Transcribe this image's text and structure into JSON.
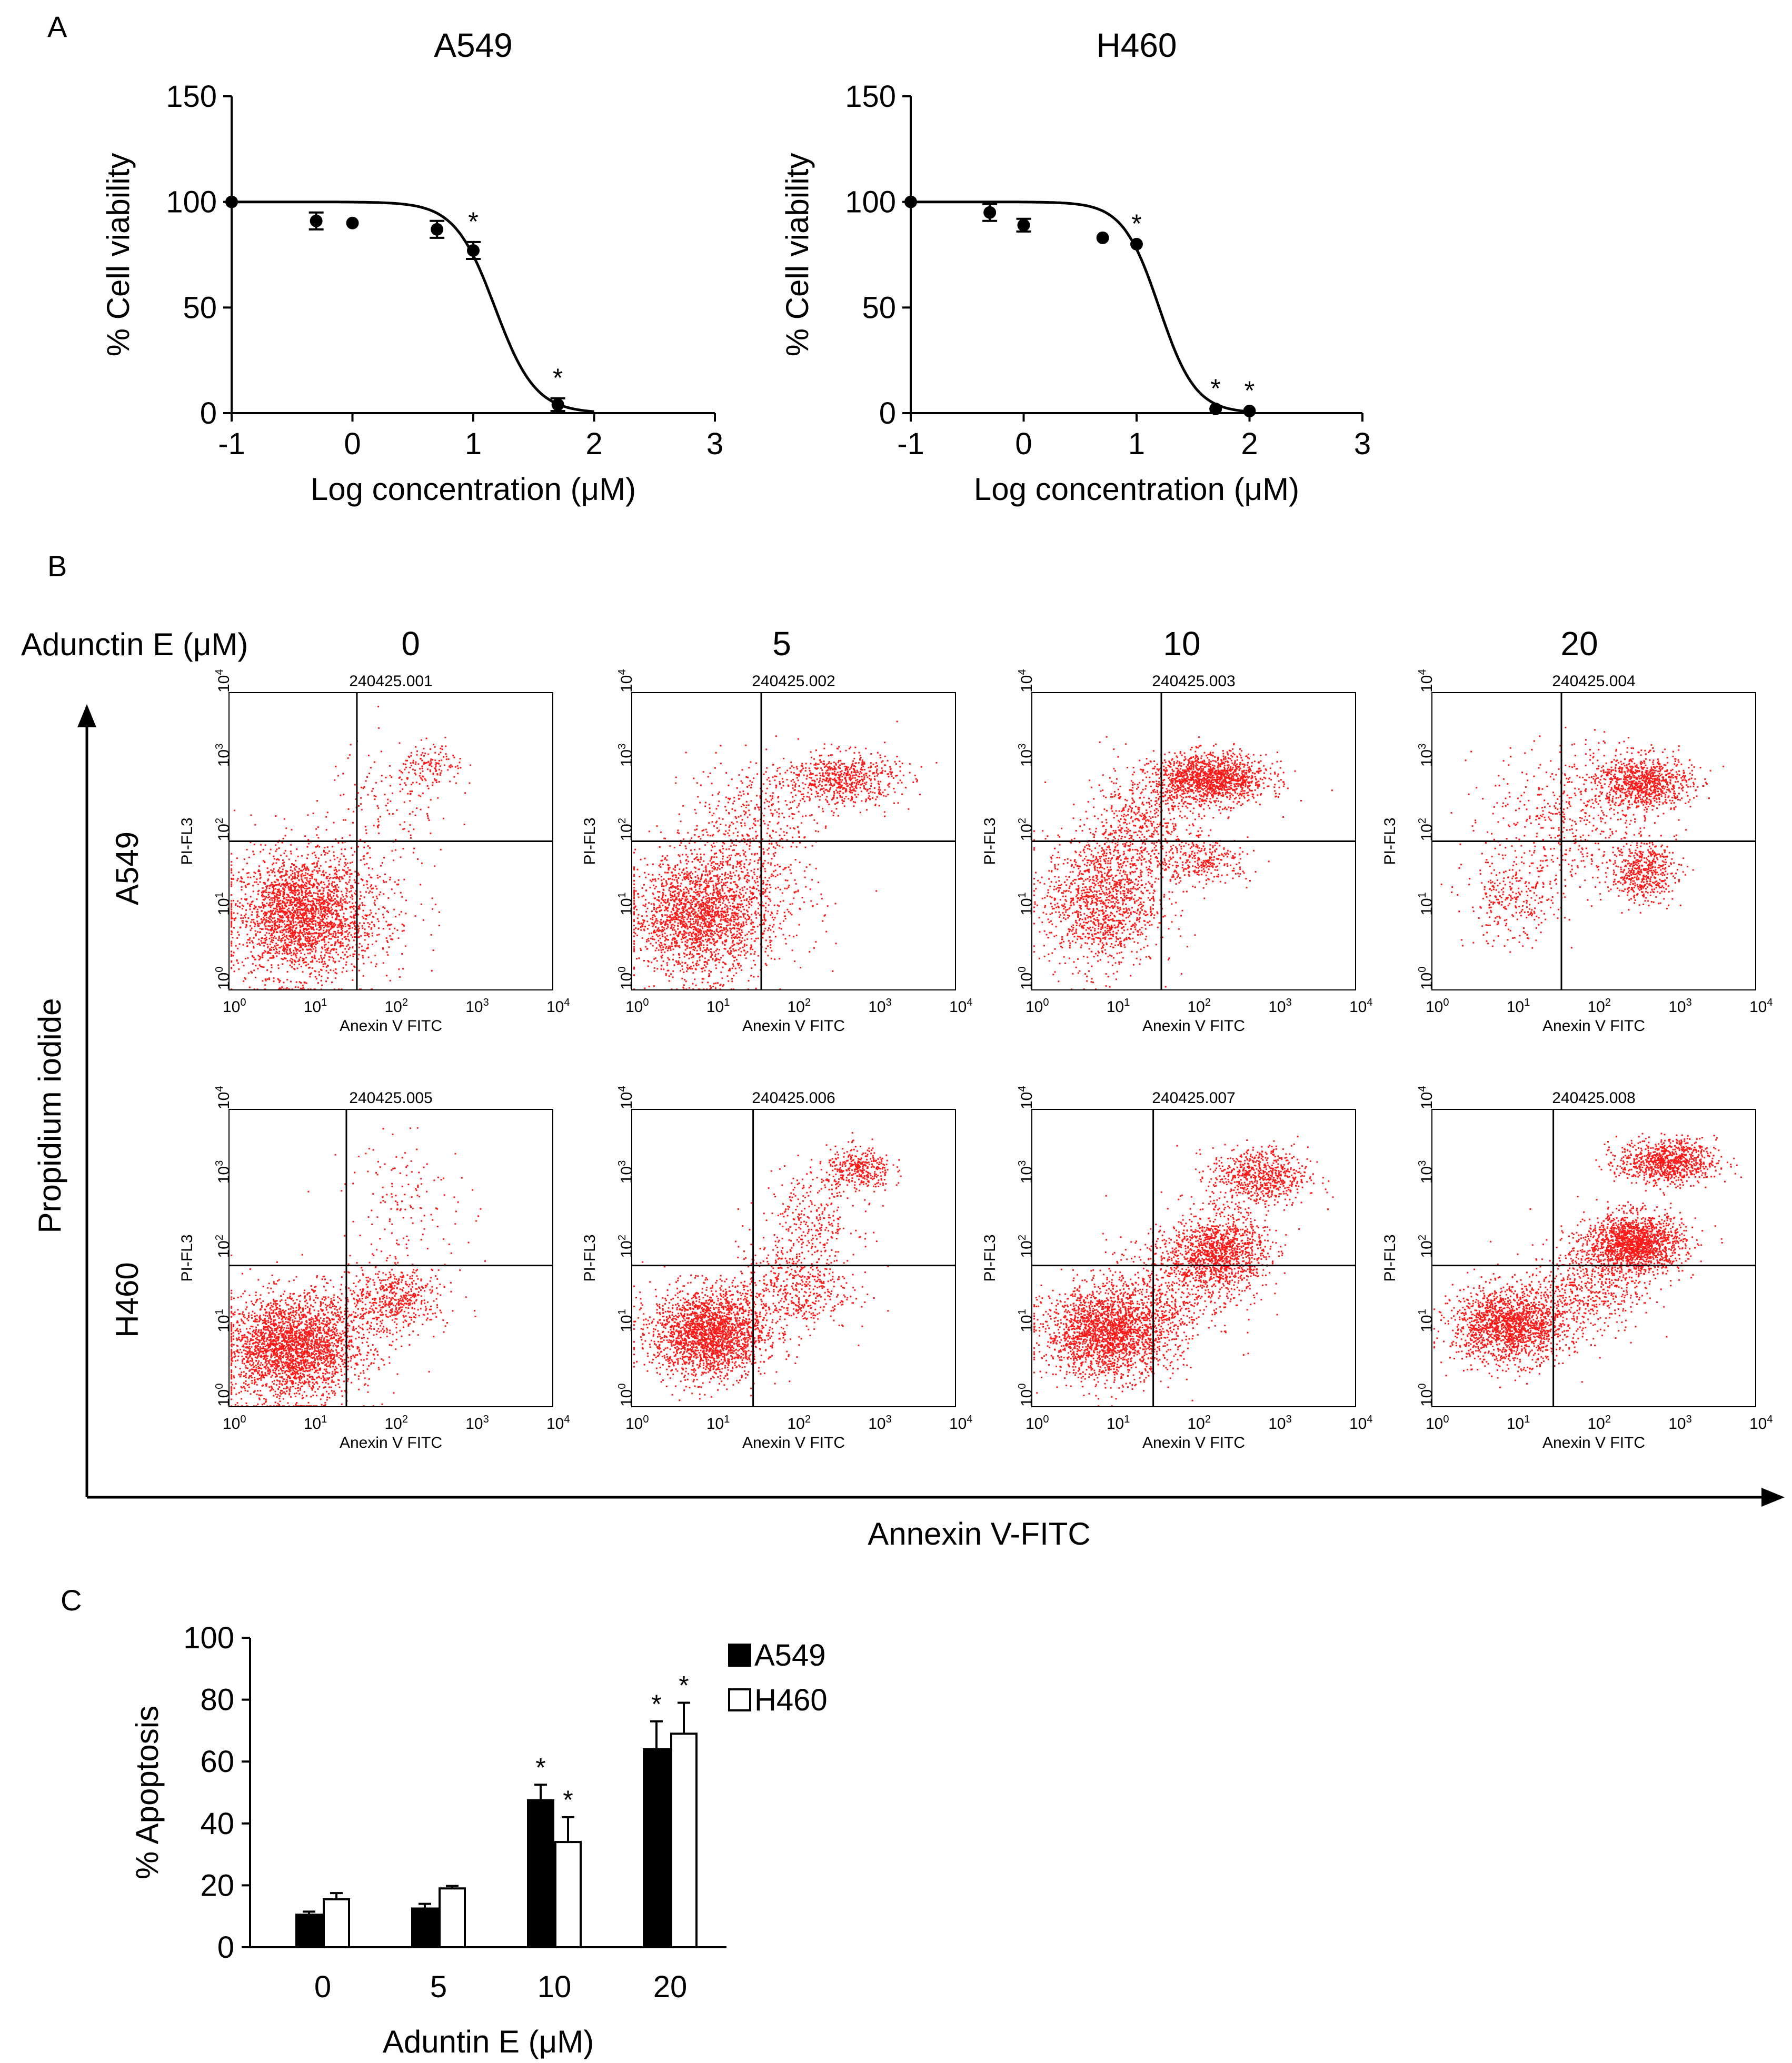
{
  "panels": {
    "a": {
      "label": "A"
    },
    "b": {
      "label": "B"
    },
    "c": {
      "label": "C"
    }
  },
  "chart_data": [
    {
      "id": "A549-viability",
      "type": "scatter",
      "title": "A549",
      "xlabel": "Log concentration (μM)",
      "ylabel": "% Cell viability",
      "xlim": [
        -1,
        3
      ],
      "ylim": [
        0,
        150
      ],
      "x_ticks": [
        -1,
        0,
        1,
        2,
        3
      ],
      "y_ticks": [
        0,
        50,
        100,
        150
      ],
      "x_tick_labels": [
        "-1",
        "0",
        "1",
        "2",
        "3"
      ],
      "y_tick_labels": [
        "0",
        "50",
        "100",
        "150"
      ],
      "points": [
        {
          "x": -1.0,
          "y": 100,
          "err": 0,
          "sig": false
        },
        {
          "x": -0.3,
          "y": 91,
          "err": 4,
          "sig": false
        },
        {
          "x": 0.0,
          "y": 90,
          "err": 0,
          "sig": false
        },
        {
          "x": 0.7,
          "y": 87,
          "err": 4,
          "sig": false
        },
        {
          "x": 1.0,
          "y": 77,
          "err": 4,
          "sig": true
        },
        {
          "x": 1.7,
          "y": 4,
          "err": 3,
          "sig": true
        }
      ],
      "fit": {
        "top": 100,
        "bottom": 0,
        "log_ic50": 1.18,
        "hill": 2.6,
        "x_end": 2.0
      },
      "significance_marker": "*"
    },
    {
      "id": "H460-viability",
      "type": "scatter",
      "title": "H460",
      "xlabel": "Log concentration (μM)",
      "ylabel": "% Cell viability",
      "xlim": [
        -1,
        3
      ],
      "ylim": [
        0,
        150
      ],
      "x_ticks": [
        -1,
        0,
        1,
        2,
        3
      ],
      "y_ticks": [
        0,
        50,
        100,
        150
      ],
      "x_tick_labels": [
        "-1",
        "0",
        "1",
        "2",
        "3"
      ],
      "y_tick_labels": [
        "0",
        "50",
        "100",
        "150"
      ],
      "points": [
        {
          "x": -1.0,
          "y": 100,
          "err": 0,
          "sig": false
        },
        {
          "x": -0.3,
          "y": 95,
          "err": 4,
          "sig": false
        },
        {
          "x": 0.0,
          "y": 89,
          "err": 3,
          "sig": false
        },
        {
          "x": 0.7,
          "y": 83,
          "err": 0,
          "sig": false
        },
        {
          "x": 1.0,
          "y": 80,
          "err": 0,
          "sig": true
        },
        {
          "x": 1.7,
          "y": 2,
          "err": 0,
          "sig": true
        },
        {
          "x": 2.0,
          "y": 1,
          "err": 0,
          "sig": true
        }
      ],
      "fit": {
        "top": 100,
        "bottom": 0,
        "log_ic50": 1.2,
        "hill": 2.7,
        "x_end": 2.0
      },
      "significance_marker": "*"
    },
    {
      "id": "flow-cytometry",
      "type": "scatter",
      "title": "Adunctin E (μM)",
      "concentrations": [
        "0",
        "5",
        "10",
        "20"
      ],
      "rows": [
        "A549",
        "H460"
      ],
      "ylabel": "Propidium iodide",
      "xlabel": "Annexin V-FITC",
      "plot_xlabel": "Anexin V FITC",
      "plot_ylabel": "PI-FL3",
      "axis_range_log10": [
        0,
        4
      ],
      "tick_base": "10",
      "tick_exponents": [
        "0",
        "1",
        "2",
        "3",
        "4"
      ],
      "plots": [
        {
          "id": "240425.001",
          "gate_x": 1.58,
          "gate_y": 2.0,
          "clusters": [
            {
              "cx": 0.85,
              "cy": 1.0,
              "sx": 0.4,
              "sy": 0.4,
              "n": 2200
            },
            {
              "cx": 1.3,
              "cy": 1.2,
              "sx": 0.5,
              "sy": 0.55,
              "n": 500
            },
            {
              "cx": 2.5,
              "cy": 3.0,
              "sx": 0.2,
              "sy": 0.15,
              "n": 140
            },
            {
              "cx": 2.0,
              "cy": 2.5,
              "sx": 0.4,
              "sy": 0.4,
              "n": 130
            }
          ]
        },
        {
          "id": "240425.002",
          "gate_x": 1.6,
          "gate_y": 2.0,
          "clusters": [
            {
              "cx": 0.8,
              "cy": 1.0,
              "sx": 0.4,
              "sy": 0.4,
              "n": 1900
            },
            {
              "cx": 1.4,
              "cy": 1.3,
              "sx": 0.45,
              "sy": 0.5,
              "n": 500
            },
            {
              "cx": 2.6,
              "cy": 2.85,
              "sx": 0.35,
              "sy": 0.18,
              "n": 650
            },
            {
              "cx": 1.5,
              "cy": 2.4,
              "sx": 0.4,
              "sy": 0.35,
              "n": 330
            }
          ]
        },
        {
          "id": "240425.003",
          "gate_x": 1.6,
          "gate_y": 2.0,
          "clusters": [
            {
              "cx": 0.85,
              "cy": 1.2,
              "sx": 0.35,
              "sy": 0.45,
              "n": 1300
            },
            {
              "cx": 2.2,
              "cy": 2.85,
              "sx": 0.35,
              "sy": 0.17,
              "n": 1400
            },
            {
              "cx": 1.35,
              "cy": 2.2,
              "sx": 0.35,
              "sy": 0.4,
              "n": 550
            },
            {
              "cx": 2.1,
              "cy": 1.75,
              "sx": 0.3,
              "sy": 0.15,
              "n": 300
            }
          ]
        },
        {
          "id": "240425.004",
          "gate_x": 1.6,
          "gate_y": 2.0,
          "clusters": [
            {
              "cx": 1.0,
              "cy": 1.2,
              "sx": 0.3,
              "sy": 0.3,
              "n": 300
            },
            {
              "cx": 2.6,
              "cy": 2.8,
              "sx": 0.3,
              "sy": 0.18,
              "n": 900
            },
            {
              "cx": 2.6,
              "cy": 1.6,
              "sx": 0.2,
              "sy": 0.2,
              "n": 500
            },
            {
              "cx": 1.7,
              "cy": 2.3,
              "sx": 0.5,
              "sy": 0.5,
              "n": 500
            }
          ]
        },
        {
          "id": "240425.005",
          "gate_x": 1.45,
          "gate_y": 1.9,
          "clusters": [
            {
              "cx": 0.75,
              "cy": 0.8,
              "sx": 0.4,
              "sy": 0.35,
              "n": 2600
            },
            {
              "cx": 2.1,
              "cy": 1.5,
              "sx": 0.3,
              "sy": 0.2,
              "n": 400
            },
            {
              "cx": 1.6,
              "cy": 1.2,
              "sx": 0.4,
              "sy": 0.3,
              "n": 300
            },
            {
              "cx": 2.2,
              "cy": 2.8,
              "sx": 0.4,
              "sy": 0.4,
              "n": 140
            }
          ]
        },
        {
          "id": "240425.006",
          "gate_x": 1.5,
          "gate_y": 1.9,
          "clusters": [
            {
              "cx": 0.95,
              "cy": 1.0,
              "sx": 0.35,
              "sy": 0.3,
              "n": 2200
            },
            {
              "cx": 2.0,
              "cy": 1.6,
              "sx": 0.35,
              "sy": 0.3,
              "n": 500
            },
            {
              "cx": 2.8,
              "cy": 3.2,
              "sx": 0.2,
              "sy": 0.15,
              "n": 350
            },
            {
              "cx": 2.2,
              "cy": 2.5,
              "sx": 0.3,
              "sy": 0.35,
              "n": 300
            }
          ]
        },
        {
          "id": "240425.007",
          "gate_x": 1.5,
          "gate_y": 1.9,
          "clusters": [
            {
              "cx": 0.95,
              "cy": 1.0,
              "sx": 0.4,
              "sy": 0.3,
              "n": 2200
            },
            {
              "cx": 2.3,
              "cy": 2.1,
              "sx": 0.3,
              "sy": 0.25,
              "n": 1200
            },
            {
              "cx": 2.8,
              "cy": 3.1,
              "sx": 0.3,
              "sy": 0.2,
              "n": 700
            },
            {
              "cx": 1.7,
              "cy": 1.6,
              "sx": 0.4,
              "sy": 0.35,
              "n": 500
            }
          ]
        },
        {
          "id": "240425.008",
          "gate_x": 1.5,
          "gate_y": 1.9,
          "clusters": [
            {
              "cx": 0.95,
              "cy": 1.1,
              "sx": 0.35,
              "sy": 0.25,
              "n": 1700
            },
            {
              "cx": 2.5,
              "cy": 2.2,
              "sx": 0.3,
              "sy": 0.2,
              "n": 1700
            },
            {
              "cx": 2.9,
              "cy": 3.3,
              "sx": 0.3,
              "sy": 0.15,
              "n": 900
            },
            {
              "cx": 1.9,
              "cy": 1.6,
              "sx": 0.35,
              "sy": 0.3,
              "n": 500
            }
          ]
        }
      ]
    },
    {
      "id": "apoptosis",
      "type": "bar",
      "categories": [
        "0",
        "5",
        "10",
        "20"
      ],
      "series": [
        {
          "name": "A549",
          "values": [
            10.5,
            12.5,
            47.5,
            64
          ],
          "errors": [
            1,
            1.5,
            5,
            9
          ],
          "sig": [
            false,
            false,
            true,
            true
          ],
          "color": "#000000"
        },
        {
          "name": "H460",
          "values": [
            15.5,
            19,
            34,
            69
          ],
          "errors": [
            2,
            0.8,
            8,
            10
          ],
          "sig": [
            false,
            false,
            true,
            true
          ],
          "color": "#ffffff"
        }
      ],
      "xlabel": "Aduntin E (μM)",
      "ylabel": "% Apoptosis",
      "ylim": [
        0,
        100
      ],
      "y_ticks": [
        0,
        20,
        40,
        60,
        80,
        100
      ],
      "y_tick_labels": [
        "0",
        "20",
        "40",
        "60",
        "80",
        "100"
      ],
      "legend_position": "top-right",
      "significance_marker": "*"
    }
  ]
}
